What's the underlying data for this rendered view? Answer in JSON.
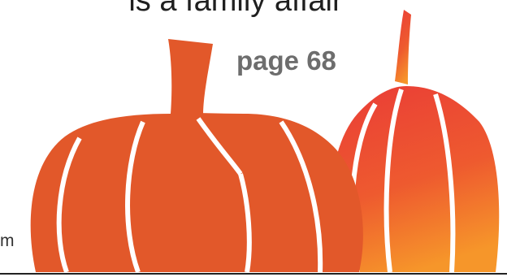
{
  "headline": "is a family affair",
  "page_ref": "page 68",
  "edge_text": "m",
  "colors": {
    "pumpkin_left": "#e2582a",
    "pumpkin_right_top": "#ea3f36",
    "pumpkin_right_bottom": "#f48b24",
    "headline_text": "#1f1f1f",
    "page_ref_text": "#6d6d6d",
    "rule": "#222222"
  },
  "art": {
    "left": "pumpkin-illustration",
    "right": "pumpkin-illustration"
  }
}
